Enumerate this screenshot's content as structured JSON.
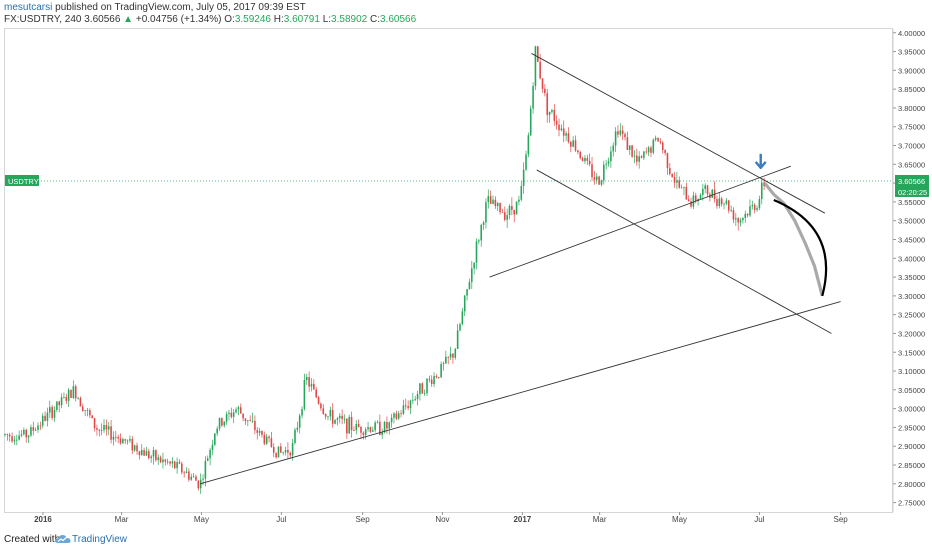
{
  "header": {
    "author": "mesutcarsi",
    "published": "published on TradingView.com, July 05, 2017 09:39 EST",
    "symbol": "FX:USDTRY, 240",
    "last": "3.60566",
    "change": "+0.04756 (+1.34%)",
    "o_label": "O:",
    "o": "3.59246",
    "h_label": "H:",
    "h": "3.60791",
    "l_label": "L:",
    "l": "3.58902",
    "c_label": "C:",
    "c": "3.60566"
  },
  "footer": {
    "created_with": "Created with",
    "brand": "TradingView"
  },
  "colors": {
    "up": "#26a65b",
    "down": "#e04848",
    "symbol_tag": "#26a65b",
    "timer_tag": "#26a65b",
    "arrow": "#3a7cc2",
    "trendline": "#333333",
    "projection": "#000000"
  },
  "chart_data": {
    "type": "candlestick",
    "title": "",
    "symbol_tag": "USDTRY",
    "price_tag": "3.60566",
    "timer_tag": "02:20:25",
    "ylim": [
      2.725,
      4.01
    ],
    "grid": false,
    "x_labels": [
      "2016",
      "Mar",
      "May",
      "Jul",
      "Sep",
      "Nov",
      "2017",
      "Mar",
      "May",
      "Jul",
      "Sep"
    ],
    "x_label_dates": [
      "2016-01-01",
      "2016-03-01",
      "2016-05-01",
      "2016-07-01",
      "2016-09-01",
      "2016-11-01",
      "2017-01-01",
      "2017-03-01",
      "2017-05-01",
      "2017-07-01",
      "2017-09-01"
    ],
    "x_range": [
      "2015-12-03",
      "2017-10-11"
    ],
    "y_ticks": [
      "4.00000",
      "3.95000",
      "3.90000",
      "3.85000",
      "3.80000",
      "3.75000",
      "3.70000",
      "3.65000",
      "3.60000",
      "3.55000",
      "3.50000",
      "3.45000",
      "3.40000",
      "3.35000",
      "3.30000",
      "3.25000",
      "3.20000",
      "3.15000",
      "3.10000",
      "3.05000",
      "3.00000",
      "2.95000",
      "2.90000",
      "2.85000",
      "2.80000",
      "2.75000"
    ],
    "current_price": 3.60566,
    "price_path": [
      [
        "2015-12-03",
        2.93
      ],
      [
        "2015-12-20",
        2.93
      ],
      [
        "2016-01-10",
        3.0
      ],
      [
        "2016-01-25",
        3.05
      ],
      [
        "2016-02-10",
        2.95
      ],
      [
        "2016-03-01",
        2.92
      ],
      [
        "2016-03-25",
        2.87
      ],
      [
        "2016-04-15",
        2.84
      ],
      [
        "2016-04-30",
        2.8
      ],
      [
        "2016-05-12",
        2.95
      ],
      [
        "2016-05-28",
        3.0
      ],
      [
        "2016-06-15",
        2.93
      ],
      [
        "2016-06-30",
        2.88
      ],
      [
        "2016-07-10",
        2.9
      ],
      [
        "2016-07-20",
        3.08
      ],
      [
        "2016-08-05",
        2.98
      ],
      [
        "2016-08-25",
        2.95
      ],
      [
        "2016-09-20",
        2.95
      ],
      [
        "2016-10-15",
        3.05
      ],
      [
        "2016-10-30",
        3.1
      ],
      [
        "2016-11-10",
        3.15
      ],
      [
        "2016-11-25",
        3.4
      ],
      [
        "2016-12-05",
        3.55
      ],
      [
        "2016-12-20",
        3.52
      ],
      [
        "2016-12-30",
        3.55
      ],
      [
        "2017-01-05",
        3.7
      ],
      [
        "2017-01-11",
        3.95
      ],
      [
        "2017-01-20",
        3.8
      ],
      [
        "2017-02-10",
        3.7
      ],
      [
        "2017-02-28",
        3.6
      ],
      [
        "2017-03-15",
        3.75
      ],
      [
        "2017-03-30",
        3.65
      ],
      [
        "2017-04-15",
        3.72
      ],
      [
        "2017-04-28",
        3.6
      ],
      [
        "2017-05-10",
        3.55
      ],
      [
        "2017-05-20",
        3.58
      ],
      [
        "2017-06-05",
        3.55
      ],
      [
        "2017-06-15",
        3.5
      ],
      [
        "2017-06-30",
        3.55
      ],
      [
        "2017-07-05",
        3.605
      ]
    ],
    "trendlines": [
      {
        "from": [
          "2016-04-30",
          2.8
        ],
        "to": [
          "2017-09-01",
          3.285
        ]
      },
      {
        "from": [
          "2017-01-08",
          3.945
        ],
        "to": [
          "2017-08-20",
          3.52
        ]
      },
      {
        "from": [
          "2016-12-07",
          3.35
        ],
        "to": [
          "2017-07-25",
          3.645
        ]
      },
      {
        "from": [
          "2017-01-12",
          3.635
        ],
        "to": [
          "2017-08-25",
          3.2
        ]
      }
    ],
    "projection_path": [
      [
        "2017-07-05",
        3.6
      ],
      [
        "2017-07-12",
        3.57
      ],
      [
        "2017-07-20",
        3.545
      ],
      [
        "2017-07-28",
        3.5
      ],
      [
        "2017-08-05",
        3.44
      ],
      [
        "2017-08-12",
        3.38
      ],
      [
        "2017-08-18",
        3.3
      ]
    ],
    "projection_curve": [
      [
        "2017-07-12",
        3.555
      ],
      [
        "2017-08-18",
        3.3
      ]
    ],
    "arrow_at": [
      "2017-07-02",
      3.63
    ]
  }
}
